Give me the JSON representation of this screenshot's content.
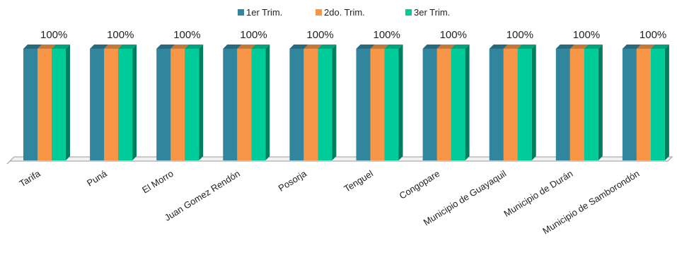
{
  "chart_data": {
    "type": "bar",
    "title": "",
    "xlabel": "",
    "ylabel": "",
    "ylim": [
      0,
      1
    ],
    "grid": false,
    "legend_position": "top",
    "categories": [
      "Tarifa",
      "Puná",
      "El Morro",
      "Juan Gomez Rendón",
      "Posorja",
      "Tenguel",
      "Congopare",
      "Municipio de Guayaquil",
      "Municipio de Durán",
      "Municipio de Samborondón"
    ],
    "series": [
      {
        "name": "1er Trim.",
        "color": "#31859C",
        "values": [
          1,
          1,
          1,
          1,
          1,
          1,
          1,
          1,
          1,
          1
        ]
      },
      {
        "name": "2do. Trim.",
        "color": "#F79646",
        "values": [
          1,
          1,
          1,
          1,
          1,
          1,
          1,
          1,
          1,
          1
        ]
      },
      {
        "name": "3er Trim.",
        "color": "#00CC99",
        "values": [
          1,
          1,
          1,
          1,
          1,
          1,
          1,
          1,
          1,
          1
        ]
      }
    ],
    "data_labels": [
      "100%",
      "100%",
      "100%",
      "100%",
      "100%",
      "100%",
      "100%",
      "100%",
      "100%",
      "100%"
    ]
  }
}
